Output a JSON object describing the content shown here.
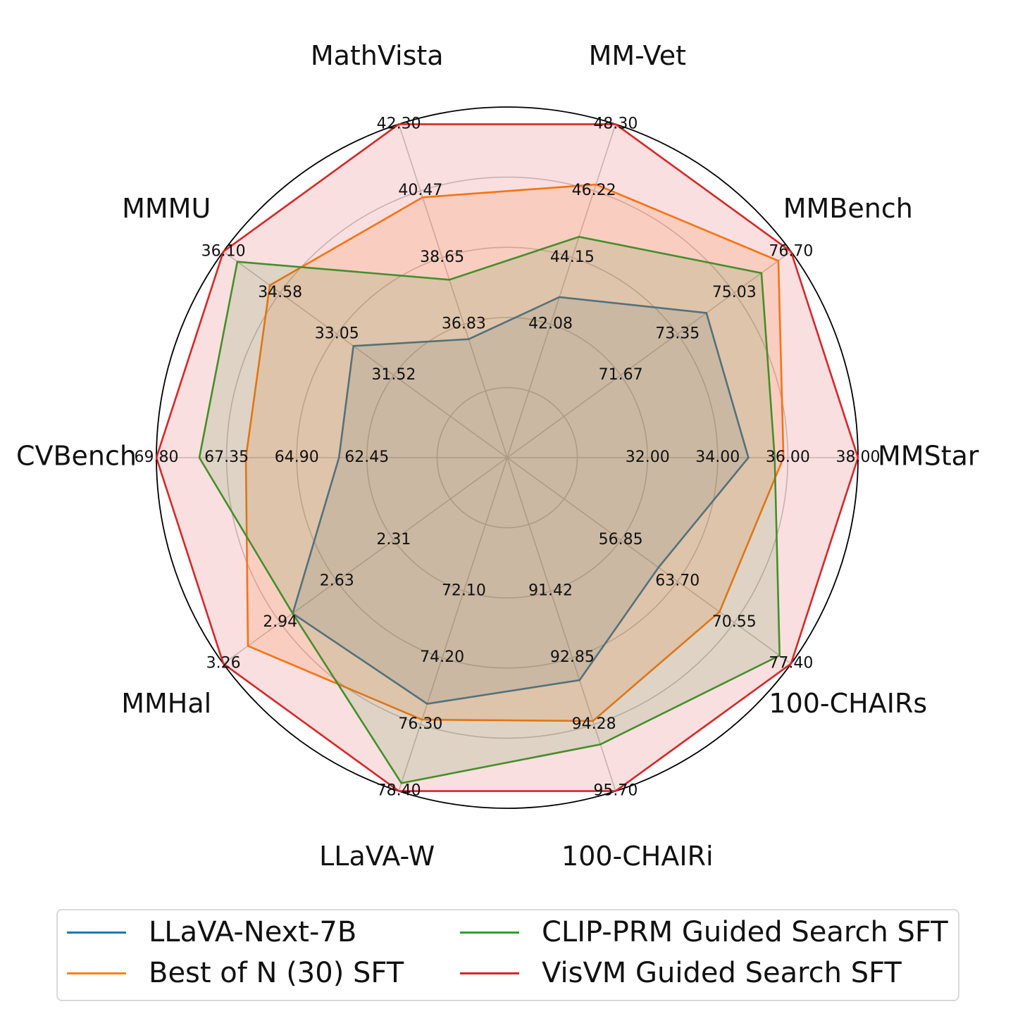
{
  "chart_data": {
    "type": "radar",
    "title": "",
    "axes": [
      {
        "label": "MMStar",
        "ticks": [
          "32.00",
          "34.00",
          "36.00",
          "38.00"
        ],
        "min": 30.0,
        "max": 38.0
      },
      {
        "label": "MMBench",
        "ticks": [
          "71.67",
          "73.35",
          "75.03",
          "76.70"
        ],
        "min": 69.99,
        "max": 76.7
      },
      {
        "label": "MM-Vet",
        "ticks": [
          "42.08",
          "44.15",
          "46.22",
          "48.30"
        ],
        "min": 40.01,
        "max": 48.3
      },
      {
        "label": "MathVista",
        "ticks": [
          "36.83",
          "38.65",
          "40.47",
          "42.30"
        ],
        "min": 35.01,
        "max": 42.3
      },
      {
        "label": "MMMU",
        "ticks": [
          "31.52",
          "33.05",
          "34.58",
          "36.10"
        ],
        "min": 29.99,
        "max": 36.1
      },
      {
        "label": "CVBench",
        "ticks": [
          "62.45",
          "64.90",
          "67.35",
          "69.80"
        ],
        "min": 60.0,
        "max": 69.8
      },
      {
        "label": "MMHal",
        "ticks": [
          "2.31",
          "2.63",
          "2.94",
          "3.26"
        ],
        "min": 1.99,
        "max": 3.26
      },
      {
        "label": "LLaVA-W",
        "ticks": [
          "72.10",
          "74.20",
          "76.30",
          "78.40"
        ],
        "min": 70.0,
        "max": 78.4
      },
      {
        "label": "100-CHAIRi",
        "ticks": [
          "91.42",
          "92.85",
          "94.28",
          "95.70"
        ],
        "min": 89.99,
        "max": 95.7
      },
      {
        "label": "100-CHAIRs",
        "ticks": [
          "56.85",
          "63.70",
          "70.55",
          "77.40"
        ],
        "min": 50.0,
        "max": 77.4
      }
    ],
    "series": [
      {
        "name": "LLaVA-Next-7B",
        "color": "#1f77b4",
        "values": [
          35.5,
          74.7,
          44.0,
          37.6,
          33.3,
          64.7,
          2.95,
          76.2,
          93.8,
          64.6
        ]
      },
      {
        "name": "Best of N (30) SFT",
        "color": "#ff7f0e",
        "values": [
          36.3,
          76.4,
          46.8,
          40.7,
          35.1,
          67.3,
          3.15,
          76.6,
          94.5,
          70.5
        ]
      },
      {
        "name": "CLIP-PRM Guided Search SFT",
        "color": "#2ca02c",
        "values": [
          36.1,
          76.0,
          45.5,
          38.9,
          35.8,
          68.6,
          2.95,
          78.2,
          94.9,
          76.3
        ]
      },
      {
        "name": "VisVM Guided Search SFT",
        "color": "#d62728",
        "values": [
          38.0,
          76.7,
          48.3,
          42.3,
          36.1,
          69.8,
          3.26,
          78.4,
          95.7,
          77.4
        ]
      }
    ],
    "grid": true,
    "legend_position": "bottom"
  },
  "legend": {
    "items": [
      {
        "label": "LLaVA-Next-7B",
        "color": "#1f77b4"
      },
      {
        "label": "Best of N (30) SFT",
        "color": "#ff7f0e"
      },
      {
        "label": "CLIP-PRM Guided Search SFT",
        "color": "#2ca02c"
      },
      {
        "label": "VisVM Guided Search SFT",
        "color": "#d62728"
      }
    ]
  }
}
